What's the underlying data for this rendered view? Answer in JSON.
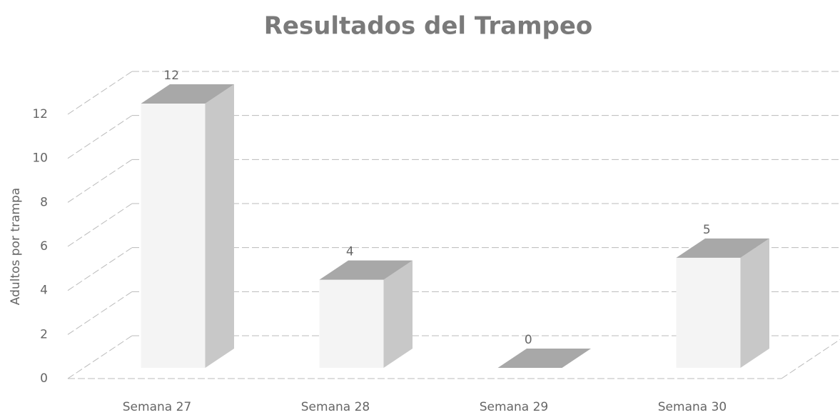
{
  "chart_data": {
    "type": "bar3d",
    "title": "Resultados del Trampeo",
    "ylabel": "Adultos por trampa",
    "categories": [
      "Semana 27",
      "Semana 28",
      "Semana 29",
      "Semana 30"
    ],
    "values": [
      12,
      4,
      0,
      5
    ],
    "color": "#c8c8c8",
    "ylim": [
      0,
      12
    ],
    "yticks": [
      0,
      2,
      4,
      6,
      8,
      10,
      12
    ],
    "grid": true
  }
}
